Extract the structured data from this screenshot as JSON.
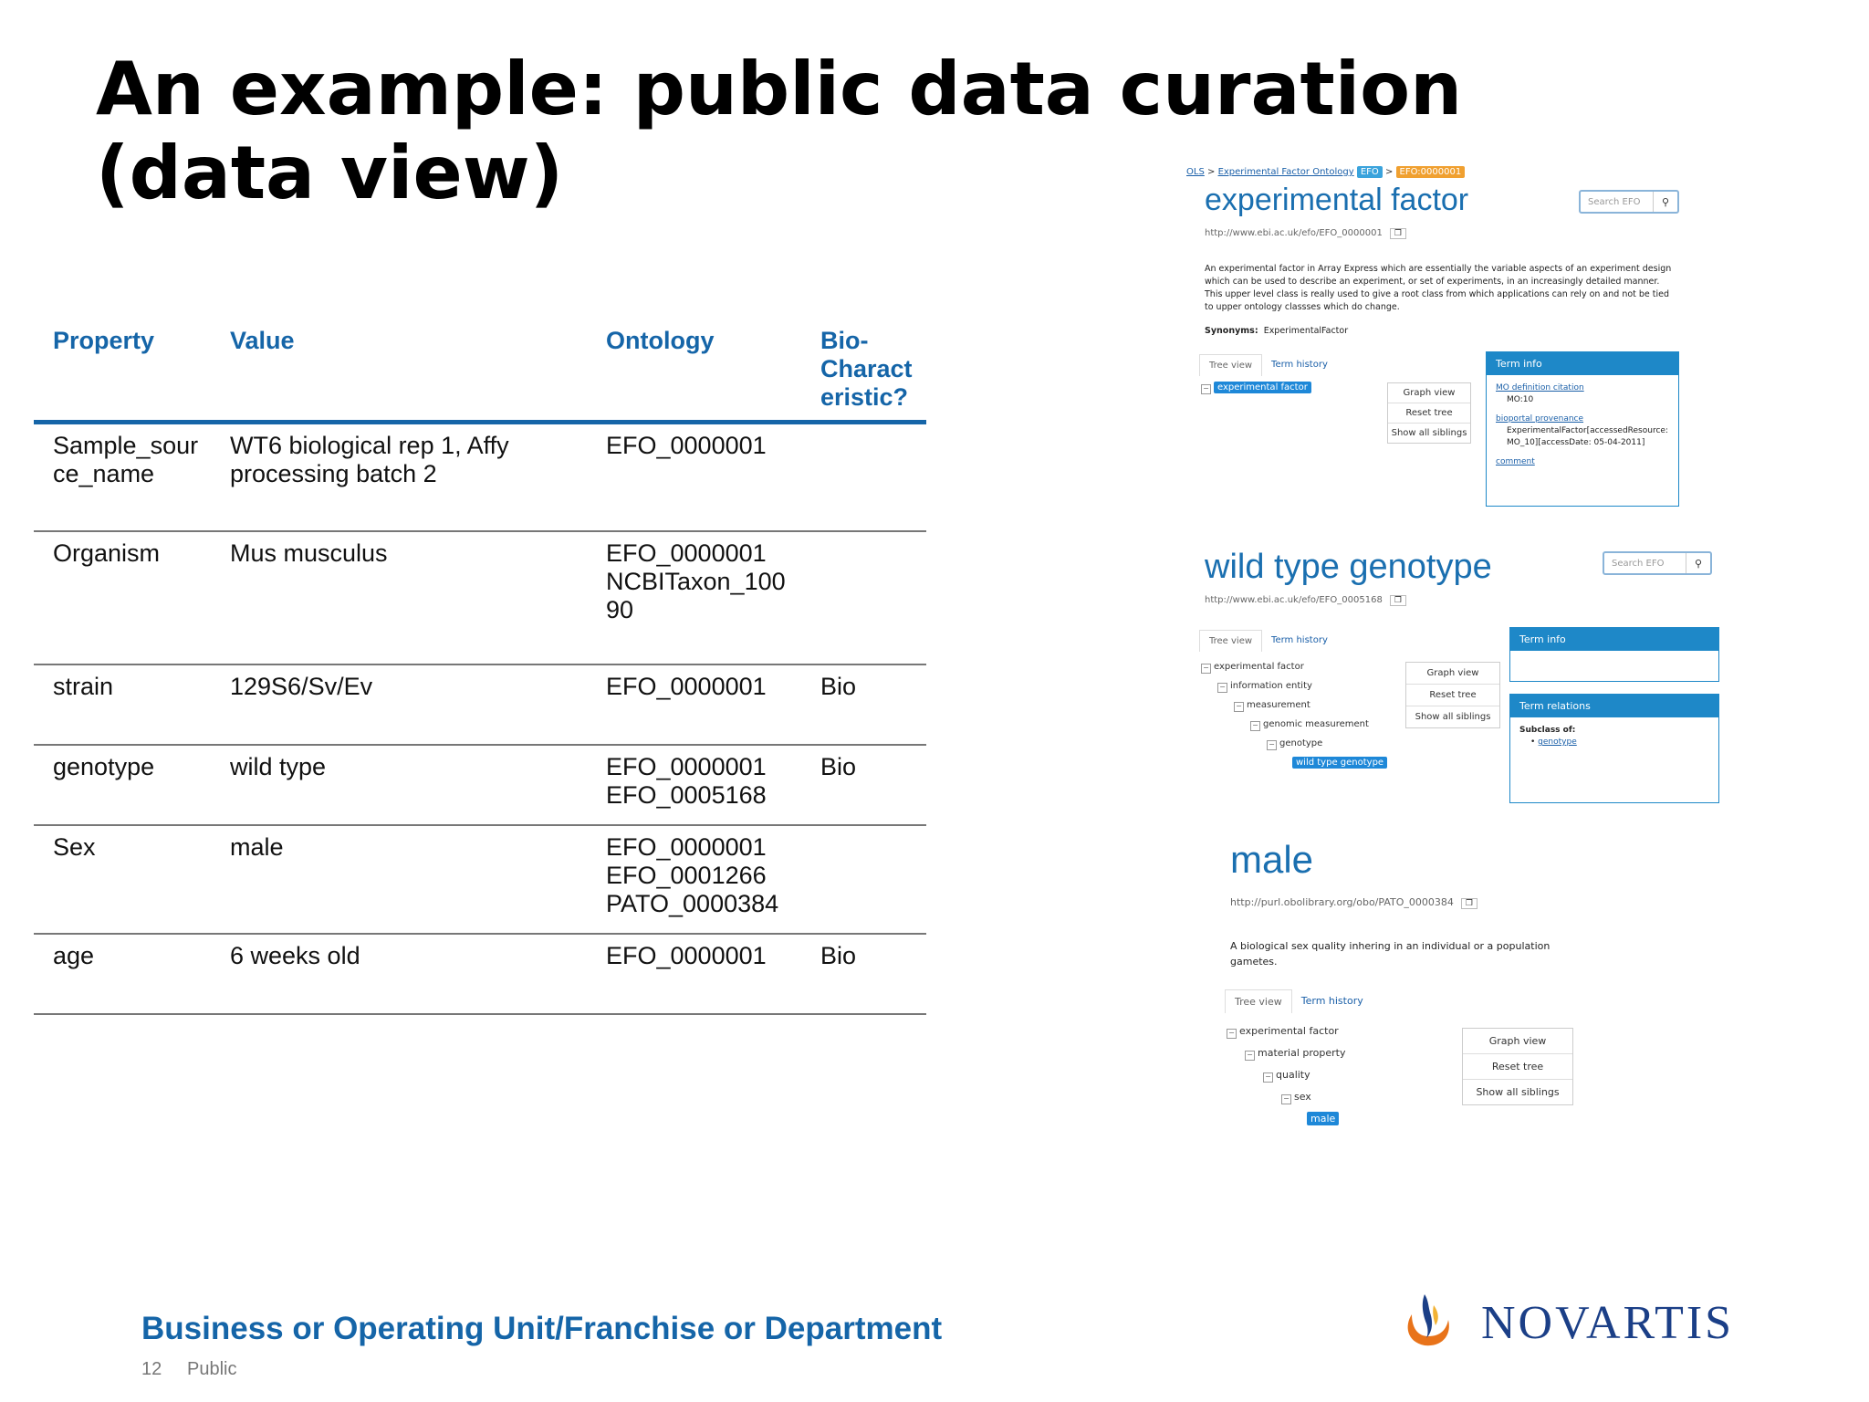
{
  "title": "An example: public data curation\n(data view)",
  "table": {
    "headers": [
      "Property",
      "Value",
      "Ontology",
      "Bio-\nCharact\neristic?"
    ],
    "rows": [
      {
        "property": "Sample_sour\nce_name",
        "value": "WT6 biological rep 1, Affy processing batch 2",
        "ontology": "EFO_0000001",
        "bio": ""
      },
      {
        "property": "Organism",
        "value": "Mus musculus",
        "ontology": "EFO_0000001\nNCBITaxon_100\n90",
        "bio": ""
      },
      {
        "property": "strain",
        "value": "129S6/Sv/Ev",
        "ontology": "EFO_0000001",
        "bio": "Bio"
      },
      {
        "property": "genotype",
        "value": "wild type",
        "ontology": "EFO_0000001\nEFO_0005168",
        "bio": "Bio"
      },
      {
        "property": "Sex",
        "value": "male",
        "ontology": "EFO_0000001\nEFO_0001266\nPATO_0000384",
        "bio": ""
      },
      {
        "property": "age",
        "value": "6 weeks old",
        "ontology": "EFO_0000001",
        "bio": "Bio"
      }
    ]
  },
  "panel1": {
    "crumb_ols": "OLS",
    "crumb_sep": ">",
    "crumb_onto": "Experimental Factor Ontology",
    "crumb_efo": "EFO",
    "crumb_id": "EFO:0000001",
    "term": "experimental factor",
    "search_placeholder": "Search EFO",
    "iri": "http://www.ebi.ac.uk/efo/EFO_0000001",
    "description": "An experimental factor in Array Express which are essentially the variable aspects of an experiment design which can be used to describe an experiment, or set of experiments, in an increasingly detailed manner. This upper level class is really used to give a root class from which applications can rely on and not be tied to upper ontology classses which do change.",
    "synonyms_label": "Synonyms:",
    "synonyms_value": "ExperimentalFactor",
    "tab_tree": "Tree view",
    "tab_history": "Term history",
    "tree": [
      "experimental factor"
    ],
    "btn_graph": "Graph view",
    "btn_reset": "Reset tree",
    "btn_siblings": "Show all siblings",
    "info_title": "Term info",
    "info_mo_label": "MO definition citation",
    "info_mo_value": "MO:10",
    "info_bio_label": "bioportal provenance",
    "info_bio_value": "ExperimentalFactor[accessedResource: MO_10][accessDate: 05-04-2011]",
    "info_comment": "comment"
  },
  "panel2": {
    "term": "wild type genotype",
    "search_placeholder": "Search EFO",
    "iri": "http://www.ebi.ac.uk/efo/EFO_0005168",
    "tab_tree": "Tree view",
    "tab_history": "Term history",
    "tree": [
      "experimental factor",
      "information entity",
      "measurement",
      "genomic measurement",
      "genotype",
      "wild type genotype"
    ],
    "btn_graph": "Graph view",
    "btn_reset": "Reset tree",
    "btn_siblings": "Show all siblings",
    "info_title": "Term info",
    "rel_title": "Term relations",
    "rel_subclass": "Subclass of:",
    "rel_parent": "genotype"
  },
  "panel3": {
    "term": "male",
    "iri": "http://purl.obolibrary.org/obo/PATO_0000384",
    "description": "A biological sex quality inhering in an individual or a population gametes.",
    "tab_tree": "Tree view",
    "tab_history": "Term history",
    "tree": [
      "experimental factor",
      "material property",
      "quality",
      "sex",
      "male"
    ],
    "btn_graph": "Graph view",
    "btn_reset": "Reset tree",
    "btn_siblings": "Show all siblings"
  },
  "footer": {
    "department": "Business or Operating Unit/Franchise or Department",
    "page": "12",
    "classification": "Public",
    "brand": "NOVARTIS"
  },
  "colors": {
    "accent": "#1565a8",
    "ols_blue": "#1e88c8",
    "logo_orange": "#e8731a",
    "logo_navy": "#1b3f87"
  }
}
